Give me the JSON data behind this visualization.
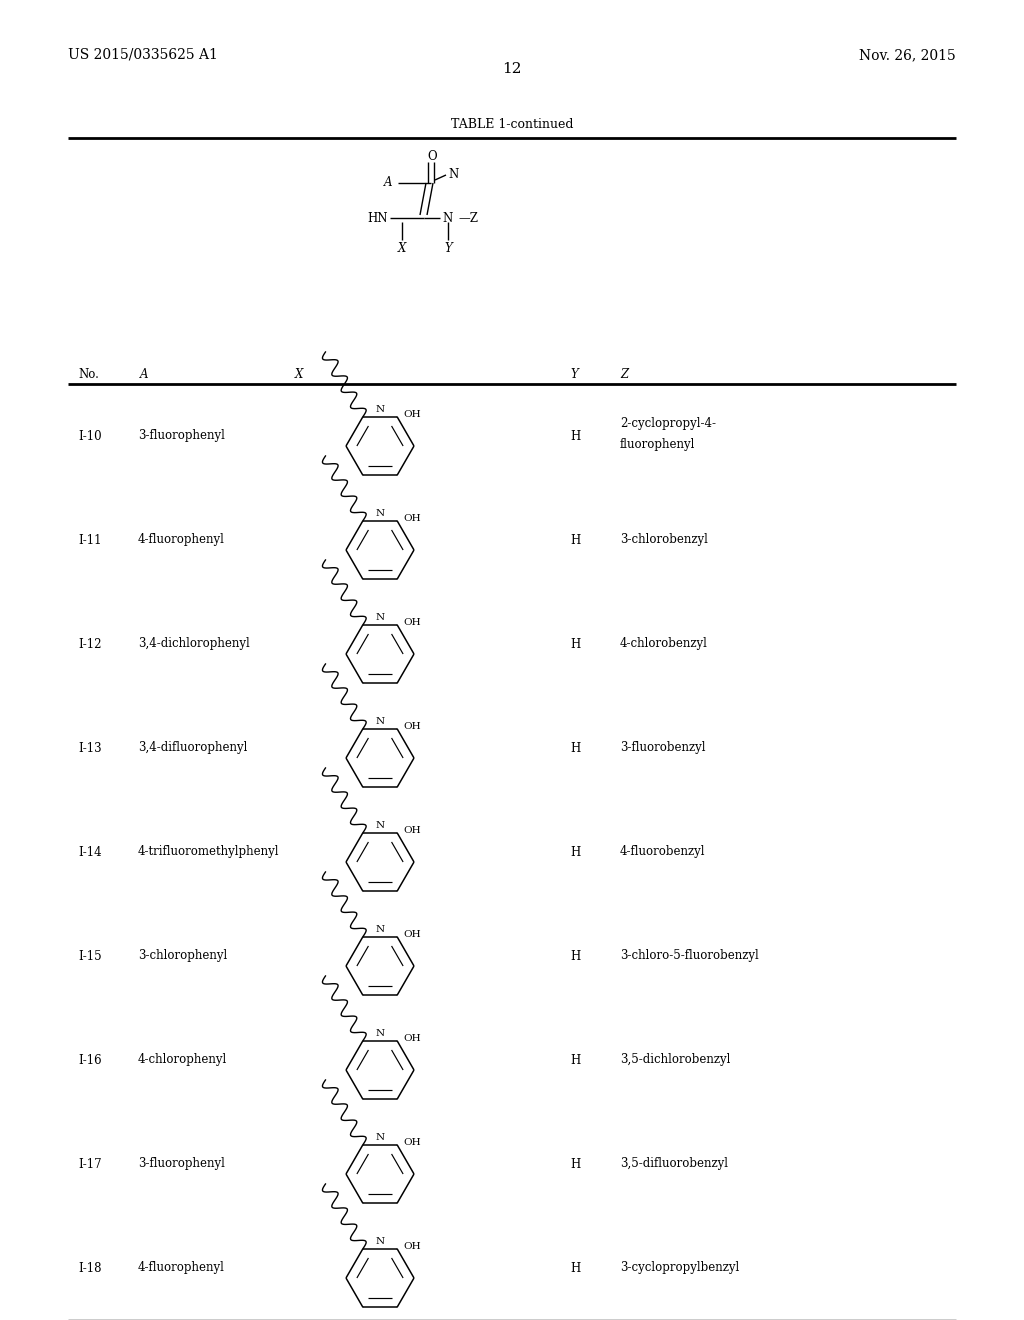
{
  "page_number": "12",
  "patent_number": "US 2015/0335625 A1",
  "patent_date": "Nov. 26, 2015",
  "table_title": "TABLE 1-continued",
  "rows": [
    {
      "no": "I-10",
      "A": "3-fluorophenyl",
      "Y": "H",
      "Z": "2-cyclopropyl-4-\nfluorophenyl"
    },
    {
      "no": "I-11",
      "A": "4-fluorophenyl",
      "Y": "H",
      "Z": "3-chlorobenzyl"
    },
    {
      "no": "I-12",
      "A": "3,4-dichlorophenyl",
      "Y": "H",
      "Z": "4-chlorobenzyl"
    },
    {
      "no": "I-13",
      "A": "3,4-difluorophenyl",
      "Y": "H",
      "Z": "3-fluorobenzyl"
    },
    {
      "no": "I-14",
      "A": "4-trifluoromethylphenyl",
      "Y": "H",
      "Z": "4-fluorobenzyl"
    },
    {
      "no": "I-15",
      "A": "3-chlorophenyl",
      "Y": "H",
      "Z": "3-chloro-5-fluorobenzyl"
    },
    {
      "no": "I-16",
      "A": "4-chlorophenyl",
      "Y": "H",
      "Z": "3,5-dichlorobenzyl"
    },
    {
      "no": "I-17",
      "A": "3-fluorophenyl",
      "Y": "H",
      "Z": "3,5-difluorobenzyl"
    },
    {
      "no": "I-18",
      "A": "4-fluorophenyl",
      "Y": "H",
      "Z": "3-cyclopropylbenzyl"
    }
  ]
}
